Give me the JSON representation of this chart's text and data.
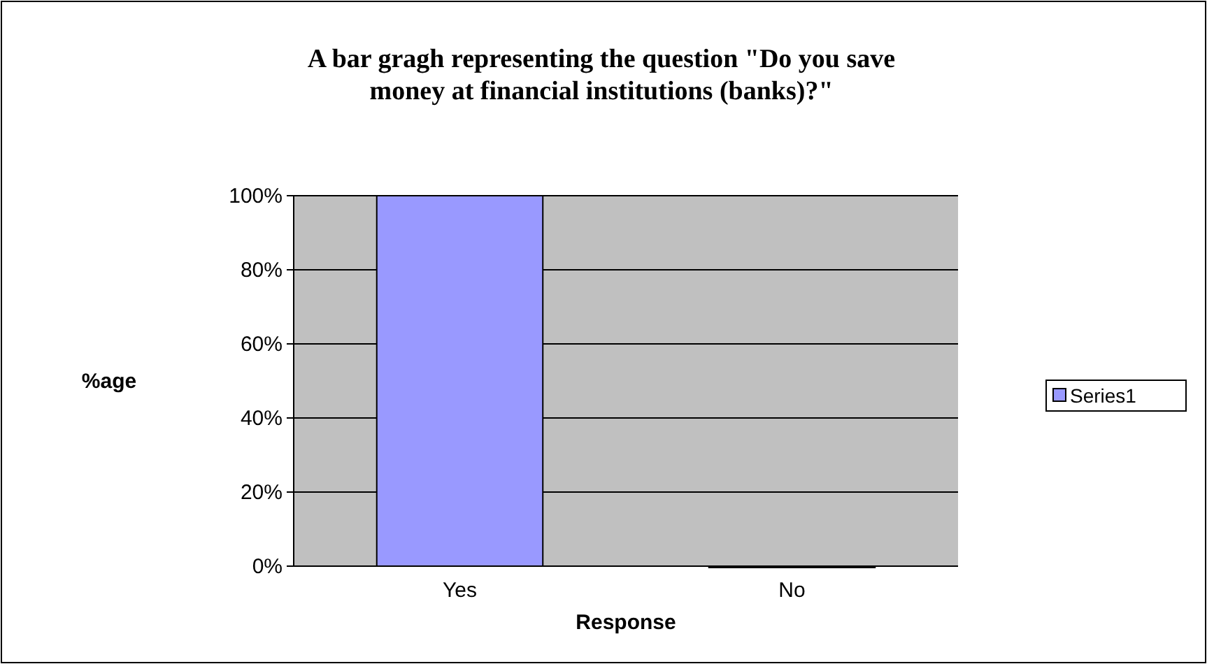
{
  "chart_data": {
    "type": "bar",
    "title": "A bar gragh representing the question \"Do you  save money at financial institutions (banks)?\"",
    "xlabel": "Response",
    "ylabel": "%age",
    "categories": [
      "Yes",
      "No"
    ],
    "series": [
      {
        "name": "Series1",
        "color": "#9999ff",
        "values": [
          100,
          0
        ]
      }
    ],
    "ylim": [
      0,
      100
    ],
    "yticks": [
      {
        "value": 0,
        "label": "0%"
      },
      {
        "value": 20,
        "label": "20%"
      },
      {
        "value": 40,
        "label": "40%"
      },
      {
        "value": 60,
        "label": "60%"
      },
      {
        "value": 80,
        "label": "80%"
      },
      {
        "value": 100,
        "label": "100%"
      }
    ],
    "grid": "y",
    "legend": "right"
  }
}
